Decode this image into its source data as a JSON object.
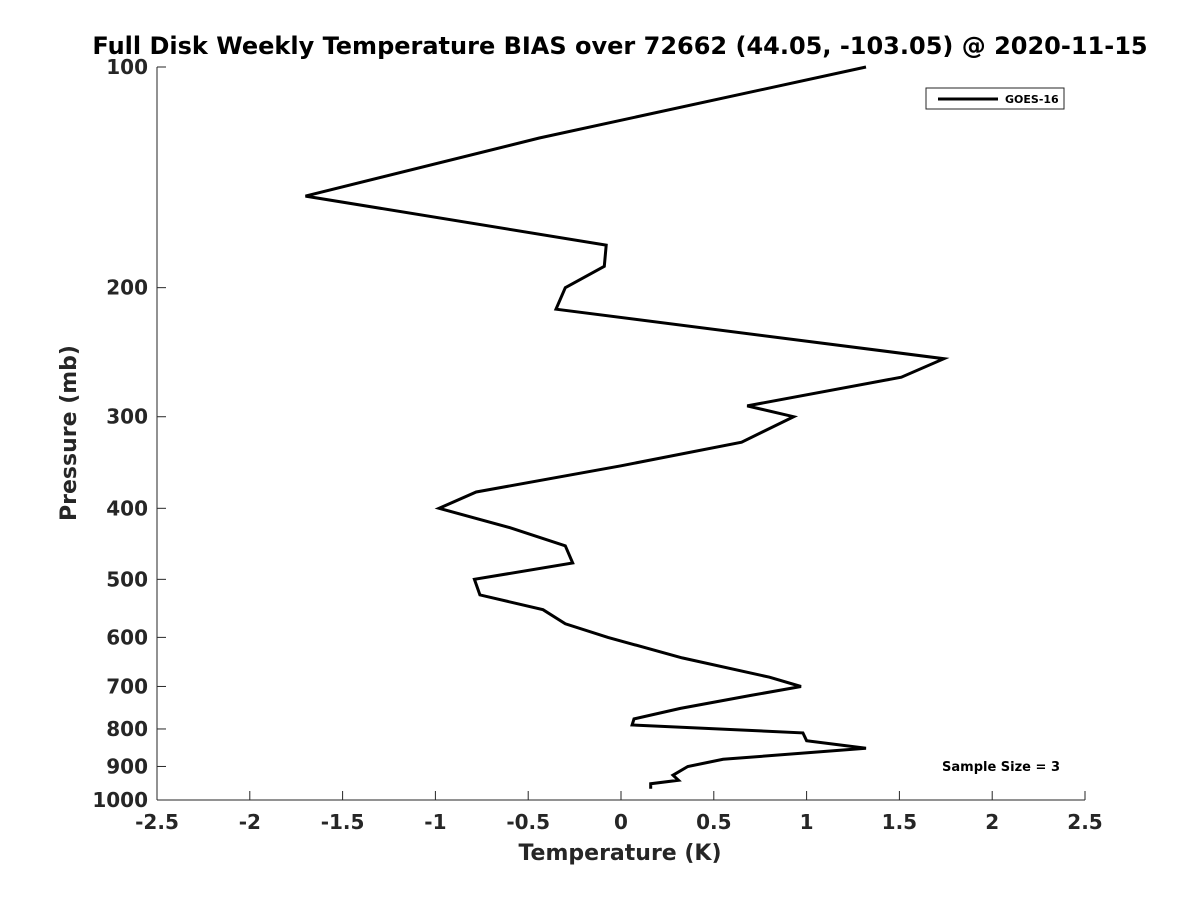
{
  "chart_data": {
    "type": "line",
    "title": "Full Disk Weekly Temperature BIAS over 72662 (44.05, -103.05) @ 2020-11-15",
    "xlabel": "Temperature (K)",
    "ylabel": "Pressure (mb)",
    "xlim": [
      -2.5,
      2.5
    ],
    "ylim": [
      100,
      1000
    ],
    "y_scale": "log",
    "y_reversed": true,
    "grid": false,
    "legend_position": "top-right",
    "x_ticks": [
      -2.5,
      -2,
      -1.5,
      -1,
      -0.5,
      0,
      0.5,
      1,
      1.5,
      2,
      2.5
    ],
    "x_tick_labels": [
      "-2.5",
      "-2",
      "-1.5",
      "-1",
      "-0.5",
      "0",
      "0.5",
      "1",
      "1.5",
      "2",
      "2.5"
    ],
    "y_ticks": [
      100,
      200,
      300,
      400,
      500,
      600,
      700,
      800,
      900,
      1000
    ],
    "y_tick_labels": [
      "100",
      "200",
      "300",
      "400",
      "500",
      "600",
      "700",
      "800",
      "900",
      "1000"
    ],
    "series": [
      {
        "name": "GOES-16",
        "color": "#000000",
        "points": [
          {
            "x": 1.32,
            "p": 100
          },
          {
            "x": -0.44,
            "p": 125
          },
          {
            "x": -1.7,
            "p": 150
          },
          {
            "x": -0.08,
            "p": 175
          },
          {
            "x": -0.09,
            "p": 187
          },
          {
            "x": -0.3,
            "p": 200
          },
          {
            "x": -0.35,
            "p": 214
          },
          {
            "x": 1.74,
            "p": 250
          },
          {
            "x": 1.51,
            "p": 265
          },
          {
            "x": 0.68,
            "p": 290
          },
          {
            "x": 0.93,
            "p": 300
          },
          {
            "x": 0.65,
            "p": 325
          },
          {
            "x": 0.0,
            "p": 350
          },
          {
            "x": -0.78,
            "p": 380
          },
          {
            "x": -0.98,
            "p": 400
          },
          {
            "x": -0.6,
            "p": 425
          },
          {
            "x": -0.3,
            "p": 450
          },
          {
            "x": -0.26,
            "p": 475
          },
          {
            "x": -0.79,
            "p": 500
          },
          {
            "x": -0.76,
            "p": 525
          },
          {
            "x": -0.42,
            "p": 550
          },
          {
            "x": -0.3,
            "p": 575
          },
          {
            "x": -0.07,
            "p": 600
          },
          {
            "x": 0.33,
            "p": 640
          },
          {
            "x": 0.8,
            "p": 680
          },
          {
            "x": 0.97,
            "p": 700
          },
          {
            "x": 0.7,
            "p": 720
          },
          {
            "x": 0.32,
            "p": 750
          },
          {
            "x": 0.07,
            "p": 775
          },
          {
            "x": 0.06,
            "p": 790
          },
          {
            "x": 0.98,
            "p": 810
          },
          {
            "x": 1.0,
            "p": 830
          },
          {
            "x": 1.32,
            "p": 850
          },
          {
            "x": 0.55,
            "p": 880
          },
          {
            "x": 0.36,
            "p": 900
          },
          {
            "x": 0.28,
            "p": 925
          },
          {
            "x": 0.31,
            "p": 940
          },
          {
            "x": 0.16,
            "p": 950
          },
          {
            "x": 0.16,
            "p": 965
          }
        ]
      }
    ],
    "annotation": "Sample Size = 3"
  }
}
